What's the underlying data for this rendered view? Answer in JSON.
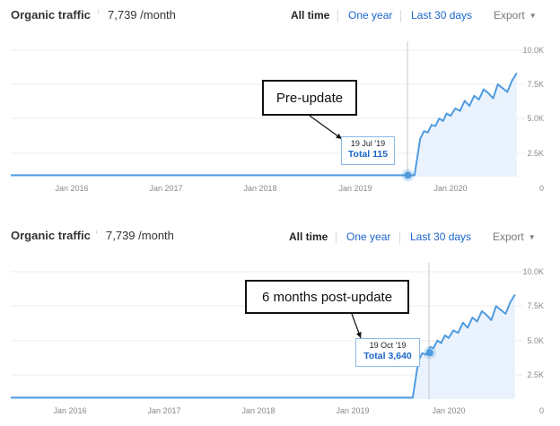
{
  "panels": [
    {
      "title": "Organic traffic",
      "info_icon": "info-icon",
      "value": "7,739 /month",
      "ranges": [
        "All time",
        "One year",
        "Last 30 days"
      ],
      "export_label": "Export",
      "callout": "Pre-update",
      "tooltip": {
        "date": "19 Jul '19",
        "total": "Total 115"
      }
    },
    {
      "title": "Organic traffic",
      "info_icon": "info-icon",
      "value": "7,739 /month",
      "ranges": [
        "All time",
        "One year",
        "Last 30 days"
      ],
      "export_label": "Export",
      "callout": "6 months post-update",
      "tooltip": {
        "date": "19 Oct '19",
        "total": "Total 3,640"
      }
    }
  ],
  "chart_data": [
    {
      "type": "area",
      "title": "Organic traffic",
      "x_tick_labels": [
        "Jan 2016",
        "Jan 2017",
        "Jan 2018",
        "Jan 2019",
        "Jan 2020"
      ],
      "y_tick_labels": [
        "10.0K",
        "7.5K",
        "5.0K",
        "2.5K",
        "0"
      ],
      "ylim": [
        0,
        10000
      ],
      "grid": true,
      "line_color": "#4f9be0",
      "fill_color": "#eaf3fd",
      "highlight": {
        "date": "2019-07-19",
        "value": 115
      },
      "series": [
        {
          "x": [
            2015.25,
            2016.0,
            2017.0,
            2018.0,
            2019.0,
            2019.55,
            2019.62,
            2019.68,
            2019.72,
            2019.76,
            2019.8,
            2019.84,
            2019.88,
            2019.92,
            2019.96,
            2020.0,
            2020.05,
            2020.1,
            2020.15,
            2020.2,
            2020.25,
            2020.3,
            2020.35,
            2020.4,
            2020.45,
            2020.5,
            2020.55,
            2020.6,
            2020.65,
            2020.7
          ],
          "y": [
            115,
            115,
            115,
            115,
            115,
            115,
            115,
            3000,
            3600,
            3500,
            4100,
            4000,
            4600,
            4400,
            5000,
            4800,
            5400,
            5200,
            6000,
            5600,
            6400,
            6100,
            6900,
            6600,
            6200,
            7300,
            7000,
            6700,
            7600,
            8200
          ]
        }
      ]
    },
    {
      "type": "area",
      "title": "Organic traffic",
      "x_tick_labels": [
        "Jan 2016",
        "Jan 2017",
        "Jan 2018",
        "Jan 2019",
        "Jan 2020"
      ],
      "y_tick_labels": [
        "10.0K",
        "7.5K",
        "5.0K",
        "2.5K",
        "0"
      ],
      "ylim": [
        0,
        10000
      ],
      "grid": true,
      "line_color": "#4f9be0",
      "fill_color": "#eaf3fd",
      "highlight": {
        "date": "2019-10-19",
        "value": 3640
      },
      "series": [
        {
          "x": [
            2015.25,
            2016.0,
            2017.0,
            2018.0,
            2019.0,
            2019.55,
            2019.62,
            2019.68,
            2019.72,
            2019.76,
            2019.8,
            2019.84,
            2019.88,
            2019.92,
            2019.96,
            2020.0,
            2020.05,
            2020.1,
            2020.15,
            2020.2,
            2020.25,
            2020.3,
            2020.35,
            2020.4,
            2020.45,
            2020.5,
            2020.55,
            2020.6,
            2020.65,
            2020.7
          ],
          "y": [
            115,
            115,
            115,
            115,
            115,
            115,
            115,
            3000,
            3600,
            3500,
            4100,
            4000,
            4600,
            4400,
            5000,
            4800,
            5400,
            5200,
            6000,
            5600,
            6400,
            6100,
            6900,
            6600,
            6200,
            7300,
            7000,
            6700,
            7600,
            8200
          ]
        }
      ]
    }
  ]
}
